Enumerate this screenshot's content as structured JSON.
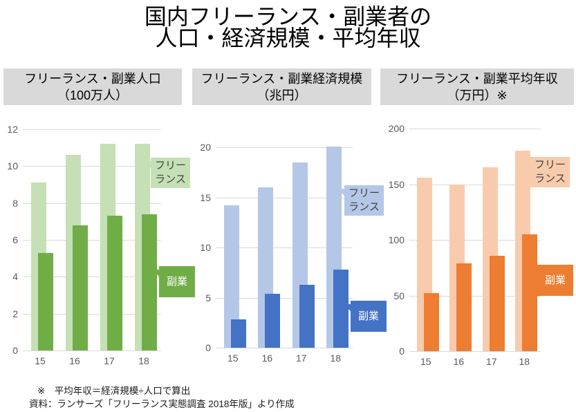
{
  "title": {
    "line1": "国内フリーランス・副業者の",
    "line2": "人口・経済規模・平均年収"
  },
  "panel_headers": [
    {
      "line1": "フリーランス・副業人口",
      "line2": "（100万人）"
    },
    {
      "line1": "フリーランス・副業経済規模",
      "line2": "（兆円）"
    },
    {
      "line1": "フリーランス・副業平均年収",
      "line2": "（万円）※"
    }
  ],
  "chart_data": [
    {
      "type": "bar",
      "title": "フリーランス・副業人口（100万人）",
      "categories": [
        "15",
        "16",
        "17",
        "18"
      ],
      "series": [
        {
          "name": "フリーランス",
          "values": [
            9.1,
            10.6,
            11.2,
            11.2
          ],
          "color": "#c5e0b4"
        },
        {
          "name": "副業",
          "values": [
            5.3,
            6.8,
            7.3,
            7.4
          ],
          "color": "#70ad47"
        }
      ],
      "ylim": [
        0,
        12
      ],
      "yticks": [
        0,
        2,
        4,
        6,
        8,
        10,
        12
      ],
      "grid": true,
      "legend": "callout"
    },
    {
      "type": "bar",
      "title": "フリーランス・副業経済規模（兆円）",
      "categories": [
        "15",
        "16",
        "17",
        "18"
      ],
      "series": [
        {
          "name": "フリーランス",
          "values": [
            14.2,
            16,
            18.5,
            20.1
          ],
          "color": "#b4c7e7"
        },
        {
          "name": "副業",
          "values": [
            2.8,
            5.4,
            6.3,
            7.8
          ],
          "color": "#4472c4"
        }
      ],
      "ylim": [
        0,
        20
      ],
      "yticks": [
        0,
        5,
        10,
        15,
        20
      ],
      "grid": true,
      "legend": "callout"
    },
    {
      "type": "bar",
      "title": "フリーランス・副業平均年収（万円）",
      "categories": [
        "15",
        "16",
        "17",
        "18"
      ],
      "series": [
        {
          "name": "フリーランス",
          "values": [
            156,
            150,
            165,
            180
          ],
          "color": "#f8cbad"
        },
        {
          "name": "副業",
          "values": [
            52,
            79,
            86,
            105
          ],
          "color": "#ed7d31"
        }
      ],
      "ylim": [
        0,
        200
      ],
      "yticks": [
        0,
        50,
        100,
        150,
        200
      ],
      "grid": true,
      "legend": "callout"
    }
  ],
  "footnotes": {
    "formula": "※　平均年収＝経済規模÷人口で算出",
    "source": "資料：ランサーズ「フリーランス実態調査 2018年版」より作成"
  },
  "colors": {
    "grid": "#d9d9d9",
    "axis_text": "#595959",
    "header_bg": "#d9d9d9"
  }
}
